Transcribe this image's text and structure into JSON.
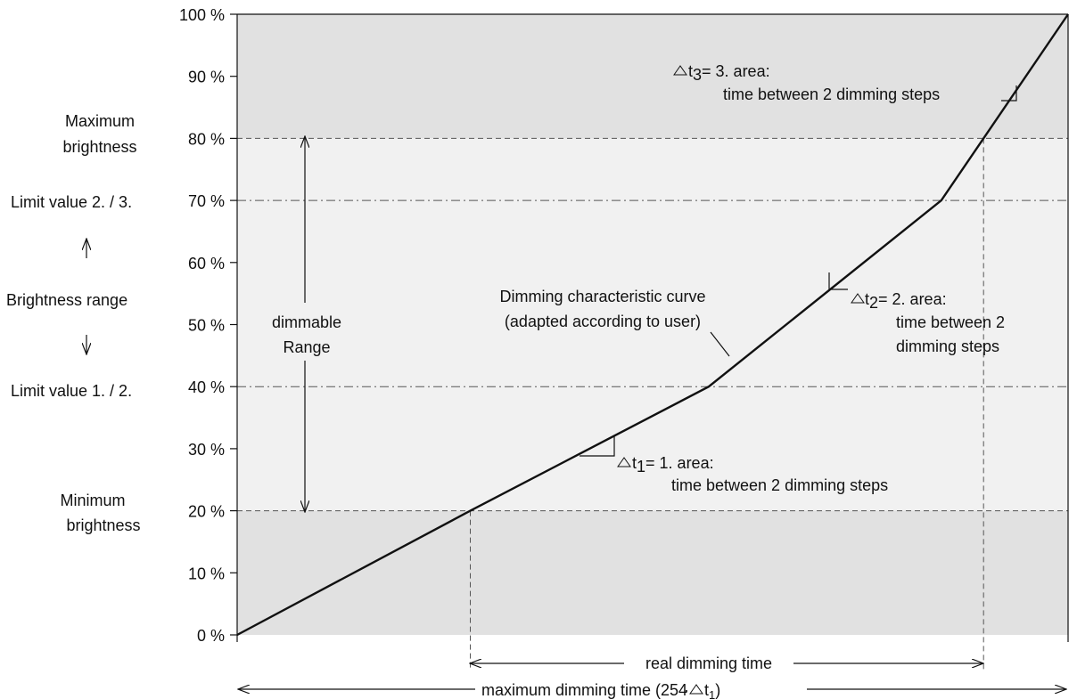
{
  "chart_data": {
    "type": "line",
    "title": "",
    "xlabel": "",
    "ylabel": "",
    "ylim": [
      0,
      100
    ],
    "y_ticks": [
      "0 %",
      "10 %",
      "20 %",
      "30 %",
      "40 %",
      "50 %",
      "60 %",
      "70 %",
      "80 %",
      "90 %",
      "100 %"
    ],
    "series": [
      {
        "x": [
          0,
          0.2806,
          0.5675,
          0.8474,
          1.0
        ],
        "y": [
          0,
          20,
          40,
          70,
          100
        ]
      }
    ],
    "bands": [
      {
        "from": 0,
        "to": 20
      },
      {
        "from": 20,
        "to": 80
      },
      {
        "from": 80,
        "to": 100
      }
    ],
    "reference_lines": [
      20,
      40,
      70,
      80
    ]
  },
  "labels": {
    "max_brightness_line1": "Maximum",
    "max_brightness_line2": "brightness",
    "limit_23": "Limit value 2. / 3.",
    "brightness_range": "Brightness range",
    "limit_12": "Limit value 1. / 2.",
    "min_brightness_line1": "Minimum",
    "min_brightness_line2": "brightness",
    "dimmable_line1": "dimmable",
    "dimmable_line2": "Range",
    "curve_line1": "Dimming characteristic curve",
    "curve_line2": "(adapted according to user)",
    "dt1_prefix": "t",
    "dt1_sub": "1",
    "dt1_suffix": "= 1. area:",
    "dt1_line2": "time between 2 dimming steps",
    "dt2_prefix": "t",
    "dt2_sub": "2",
    "dt2_suffix": "= 2. area:",
    "dt2_line2": "time between 2",
    "dt2_line3": "dimming steps",
    "dt3_prefix": "t",
    "dt3_sub": "3",
    "dt3_suffix": "= 3. area:",
    "dt3_line2": "time between 2 dimming steps",
    "real_time": "real dimming time",
    "max_time_prefix": "maximum dimming time (254 ",
    "max_time_sub": "1",
    "max_time_suffix": ")"
  },
  "colors": {
    "band_dark": "#e1e1e1",
    "band_light": "#f1f1f1",
    "line": "#111111"
  }
}
